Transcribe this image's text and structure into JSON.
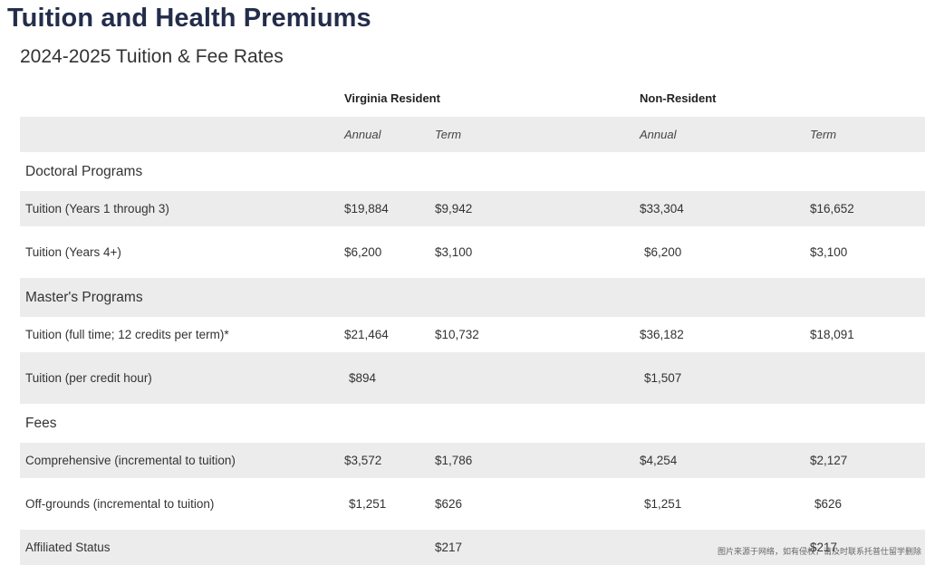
{
  "page": {
    "title": "Tuition and Health Premiums",
    "table_title": "2024-2025 Tuition & Fee Rates"
  },
  "table": {
    "residency_headers": [
      "Virginia Resident",
      "Non-Resident"
    ],
    "period_headers": [
      "Annual",
      "Term",
      "Annual",
      "Term"
    ],
    "sections": [
      {
        "name": "Doctoral Programs",
        "rows": [
          {
            "label": "Tuition (Years 1 through 3)",
            "va_annual": "$19,884",
            "va_term": "$9,942",
            "nr_annual": "$33,304",
            "nr_term": "$16,652"
          },
          {
            "label": "Tuition (Years 4+)",
            "va_annual": "$6,200",
            "va_term": "$3,100",
            "nr_annual": "$6,200",
            "nr_term": "$3,100"
          }
        ]
      },
      {
        "name": "Master's Programs",
        "rows": [
          {
            "label": "Tuition (full time; 12 credits per term)*",
            "va_annual": "$21,464",
            "va_term": "$10,732",
            "nr_annual": "$36,182",
            "nr_term": "$18,091"
          },
          {
            "label": "Tuition (per credit hour)",
            "va_annual": "$894",
            "va_term": "",
            "nr_annual": "$1,507",
            "nr_term": ""
          }
        ]
      },
      {
        "name": "Fees",
        "rows": [
          {
            "label": "Comprehensive (incremental to tuition)",
            "va_annual": "$3,572",
            "va_term": "$1,786",
            "nr_annual": "$4,254",
            "nr_term": "$2,127"
          },
          {
            "label": "Off-grounds (incremental to tuition)",
            "va_annual": "$1,251",
            "va_term": "$626",
            "nr_annual": "$1,251",
            "nr_term": "$626"
          },
          {
            "label": "Affiliated Status",
            "va_annual": "",
            "va_term": "$217",
            "nr_annual": "",
            "nr_term": "$217"
          }
        ]
      }
    ]
  },
  "watermark": "图片来源于网络，如有侵权，请及时联系托普仕留学删除"
}
